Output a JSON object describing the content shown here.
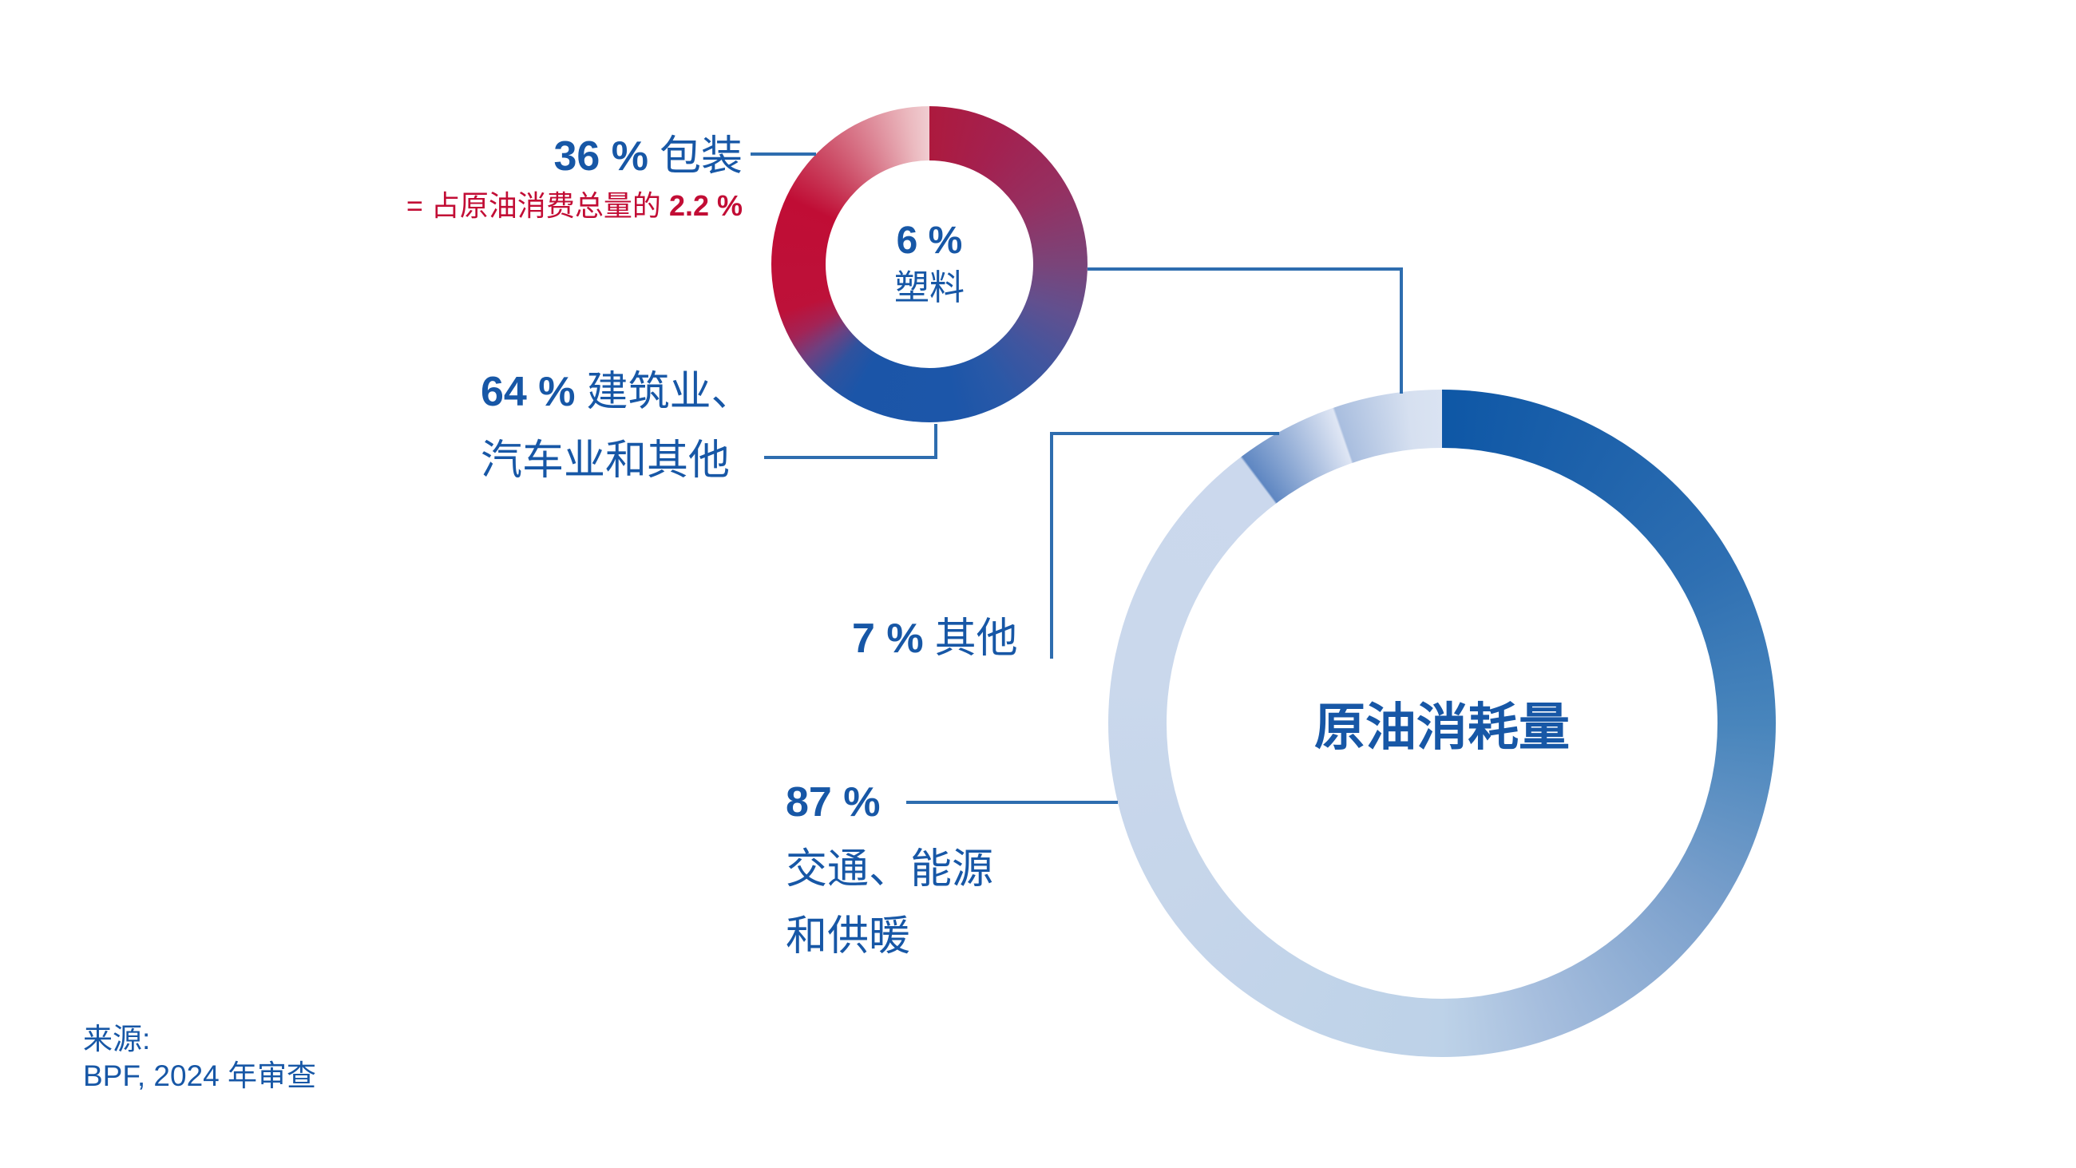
{
  "colors": {
    "background": "#FFFFFF",
    "text_blue": "#1757A6",
    "accent_red": "#C20D35",
    "line_blue": "#2E6DAF"
  },
  "small_donut": {
    "center": {
      "pct": "6 %",
      "label": "塑料"
    },
    "gradient": [
      [
        0,
        "#AD1A3E"
      ],
      [
        30,
        "#A32150"
      ],
      [
        60,
        "#953061"
      ],
      [
        90,
        "#7A4479"
      ],
      [
        110,
        "#61508F"
      ],
      [
        130,
        "#42559E"
      ],
      [
        150,
        "#2958A7"
      ],
      [
        170,
        "#1C56A9"
      ],
      [
        210,
        "#1B55A8"
      ],
      [
        222,
        "#2F529E"
      ],
      [
        233,
        "#6E4080"
      ],
      [
        242,
        "#A32355"
      ],
      [
        252,
        "#BD1139"
      ],
      [
        295,
        "#C00D35"
      ],
      [
        315,
        "#CB4863"
      ],
      [
        335,
        "#DC8494"
      ],
      [
        352,
        "#EBB9BF"
      ],
      [
        360,
        "#F0CDD1"
      ]
    ]
  },
  "large_donut": {
    "center_label": "原油消耗量",
    "gradient": [
      [
        0,
        "#0E57A6"
      ],
      [
        30,
        "#1E62AB"
      ],
      [
        60,
        "#2E6FB2"
      ],
      [
        90,
        "#4885BC"
      ],
      [
        125,
        "#7BA0CC"
      ],
      [
        160,
        "#A5BDDD"
      ],
      [
        180,
        "#BDD2E8"
      ],
      [
        230,
        "#C5D5EA"
      ],
      [
        280,
        "#CAD8EC"
      ],
      [
        322.8,
        "#CBD8ED"
      ],
      [
        323.2,
        "#5F87C2"
      ],
      [
        340.8,
        "#DFE6F4"
      ],
      [
        341.2,
        "#A9BEDF"
      ],
      [
        354,
        "#D6E0F0"
      ],
      [
        360,
        "#DAE3F2"
      ]
    ]
  },
  "labels": {
    "packaging": {
      "pct": "36 %",
      "text": "包装"
    },
    "oil_note": {
      "prefix": "= 占原油消费总量的",
      "value": "2.2 %"
    },
    "construction": {
      "pct": "64 %",
      "text": "建筑业、",
      "line2": "汽车业和其他"
    },
    "other": {
      "pct": "7 %",
      "text": "其他"
    },
    "transport": {
      "pct": "87 %",
      "line2": "交通、能源",
      "line3": "和供暖"
    }
  },
  "source": {
    "line1": "来源:",
    "line2": "BPF, 2024 年审查"
  },
  "chart_data": [
    {
      "type": "pie",
      "donut": true,
      "title": "6 % 塑料",
      "note": "= 占原油消费总量的 2.2 %",
      "labels": [
        "包装",
        "建筑业、汽车业和其他"
      ],
      "values": [
        36,
        64
      ],
      "colors": [
        "#C00D35",
        "#1B55A8"
      ],
      "color_style": "continuous red-to-blue gradient ring, sharp boundary at 12 o'clock"
    },
    {
      "type": "pie",
      "donut": true,
      "title": "原油消耗量",
      "labels": [
        "交通、能源和供暖",
        "其他",
        "塑料"
      ],
      "values": [
        87,
        7,
        6
      ],
      "colors": [
        "#0E57A6",
        "#5F87C2",
        "#A9BEDF"
      ],
      "color_style": "dark blue fading to pale blue clockwise; 7% and 6% segments pale gradients at top-left"
    }
  ]
}
